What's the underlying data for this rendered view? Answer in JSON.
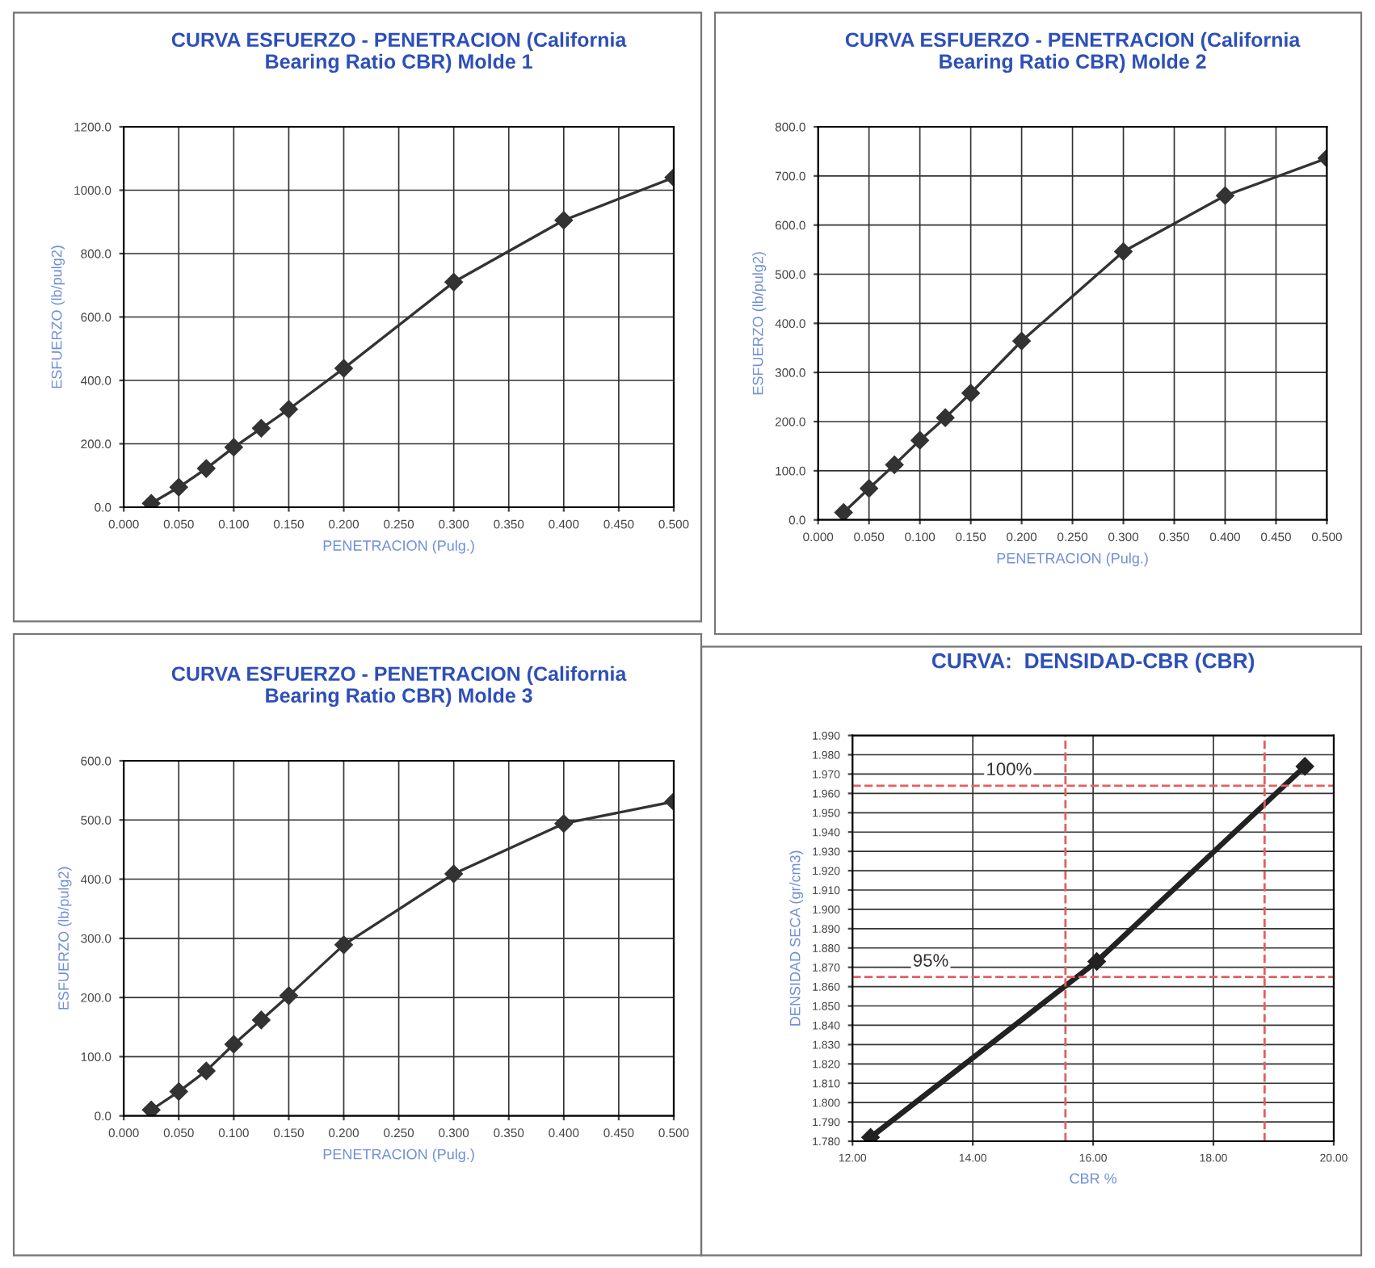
{
  "chart_data": [
    {
      "type": "line",
      "title": "CURVA ESFUERZO - PENETRACION (California Bearing Ratio CBR) Molde 1",
      "xlabel": "PENETRACION (Pulg.)",
      "ylabel": "ESFUERZO (lb/pulg2)",
      "x": [
        0.025,
        0.05,
        0.075,
        0.1,
        0.125,
        0.15,
        0.2,
        0.3,
        0.4,
        0.5
      ],
      "series": [
        {
          "color": "#333333",
          "values": [
            12,
            63,
            122,
            189,
            249,
            309,
            438,
            710,
            905,
            1040
          ]
        }
      ],
      "xlim": [
        0,
        0.5
      ],
      "xticks": [
        {
          "value": 0,
          "label": "0.000"
        },
        {
          "value": 0.05,
          "label": "0.050"
        },
        {
          "value": 0.1,
          "label": "0.100"
        },
        {
          "value": 0.15,
          "label": "0.150"
        },
        {
          "value": 0.2,
          "label": "0.200"
        },
        {
          "value": 0.25,
          "label": "0.250"
        },
        {
          "value": 0.3,
          "label": "0.300"
        },
        {
          "value": 0.35,
          "label": "0.350"
        },
        {
          "value": 0.4,
          "label": "0.400"
        },
        {
          "value": 0.45,
          "label": "0.450"
        },
        {
          "value": 0.5,
          "label": "0.500"
        }
      ],
      "ylim": [
        0,
        1200
      ],
      "yticks": [
        {
          "value": 0,
          "label": "0.0"
        },
        {
          "value": 200,
          "label": "200.0"
        },
        {
          "value": 400,
          "label": "400.0"
        },
        {
          "value": 600,
          "label": "600.0"
        },
        {
          "value": 800,
          "label": "800.0"
        },
        {
          "value": 1000,
          "label": "1000.0"
        },
        {
          "value": 1200,
          "label": "1200.0"
        }
      ],
      "grid": true,
      "marker": "diamond",
      "line_style": "solid"
    },
    {
      "type": "line",
      "title": "CURVA ESFUERZO - PENETRACION (California Bearing Ratio CBR) Molde 2",
      "xlabel": "PENETRACION (Pulg.)",
      "ylabel": "ESFUERZO (lb/pulg2)",
      "x": [
        0.025,
        0.05,
        0.075,
        0.1,
        0.125,
        0.15,
        0.2,
        0.3,
        0.4,
        0.5
      ],
      "series": [
        {
          "color": "#333333",
          "values": [
            15,
            64,
            112,
            162,
            208,
            258,
            364,
            546,
            660,
            736
          ]
        }
      ],
      "xlim": [
        0,
        0.5
      ],
      "xticks": [
        {
          "value": 0,
          "label": "0.000"
        },
        {
          "value": 0.05,
          "label": "0.050"
        },
        {
          "value": 0.1,
          "label": "0.100"
        },
        {
          "value": 0.15,
          "label": "0.150"
        },
        {
          "value": 0.2,
          "label": "0.200"
        },
        {
          "value": 0.25,
          "label": "0.250"
        },
        {
          "value": 0.3,
          "label": "0.300"
        },
        {
          "value": 0.35,
          "label": "0.350"
        },
        {
          "value": 0.4,
          "label": "0.400"
        },
        {
          "value": 0.45,
          "label": "0.450"
        },
        {
          "value": 0.5,
          "label": "0.500"
        }
      ],
      "ylim": [
        0,
        800
      ],
      "yticks": [
        {
          "value": 0,
          "label": "0.0"
        },
        {
          "value": 100,
          "label": "100.0"
        },
        {
          "value": 200,
          "label": "200.0"
        },
        {
          "value": 300,
          "label": "300.0"
        },
        {
          "value": 400,
          "label": "400.0"
        },
        {
          "value": 500,
          "label": "500.0"
        },
        {
          "value": 600,
          "label": "600.0"
        },
        {
          "value": 700,
          "label": "700.0"
        },
        {
          "value": 800,
          "label": "800.0"
        }
      ],
      "grid": true,
      "marker": "diamond",
      "line_style": "solid"
    },
    {
      "type": "line",
      "title": "CURVA ESFUERZO - PENETRACION (California Bearing Ratio CBR) Molde 3",
      "xlabel": "PENETRACION (Pulg.)",
      "ylabel": "ESFUERZO (lb/pulg2)",
      "x": [
        0.025,
        0.05,
        0.075,
        0.1,
        0.125,
        0.15,
        0.2,
        0.3,
        0.4,
        0.5
      ],
      "series": [
        {
          "color": "#333333",
          "values": [
            10,
            41,
            76,
            121,
            162,
            203,
            289,
            409,
            494,
            531
          ]
        }
      ],
      "xlim": [
        0,
        0.5
      ],
      "xticks": [
        {
          "value": 0,
          "label": "0.000"
        },
        {
          "value": 0.05,
          "label": "0.050"
        },
        {
          "value": 0.1,
          "label": "0.100"
        },
        {
          "value": 0.15,
          "label": "0.150"
        },
        {
          "value": 0.2,
          "label": "0.200"
        },
        {
          "value": 0.25,
          "label": "0.250"
        },
        {
          "value": 0.3,
          "label": "0.300"
        },
        {
          "value": 0.35,
          "label": "0.350"
        },
        {
          "value": 0.4,
          "label": "0.400"
        },
        {
          "value": 0.45,
          "label": "0.450"
        },
        {
          "value": 0.5,
          "label": "0.500"
        }
      ],
      "ylim": [
        0,
        600
      ],
      "yticks": [
        {
          "value": 0,
          "label": "0.0"
        },
        {
          "value": 100,
          "label": "100.0"
        },
        {
          "value": 200,
          "label": "200.0"
        },
        {
          "value": 300,
          "label": "300.0"
        },
        {
          "value": 400,
          "label": "400.0"
        },
        {
          "value": 500,
          "label": "500.0"
        },
        {
          "value": 600,
          "label": "600.0"
        }
      ],
      "grid": true,
      "marker": "diamond",
      "line_style": "solid"
    },
    {
      "type": "line",
      "title": "CURVA:  DENSIDAD-CBR (CBR)",
      "xlabel": "CBR %",
      "ylabel": "DENSIDAD SECA (gr/cm3)",
      "x": [
        12.3,
        16.06,
        19.52
      ],
      "series": [
        {
          "color": "#222222",
          "values": [
            1.782,
            1.873,
            1.974
          ]
        }
      ],
      "xlim": [
        12,
        20
      ],
      "xticks": [
        {
          "value": 12,
          "label": "12.00"
        },
        {
          "value": 14,
          "label": "14.00"
        },
        {
          "value": 16,
          "label": "16.00"
        },
        {
          "value": 18,
          "label": "18.00"
        },
        {
          "value": 20,
          "label": "20.00"
        }
      ],
      "ylim": [
        1.78,
        1.99
      ],
      "yticks": [
        {
          "value": 1.78,
          "label": "1.780"
        },
        {
          "value": 1.79,
          "label": "1.790"
        },
        {
          "value": 1.8,
          "label": "1.800"
        },
        {
          "value": 1.81,
          "label": "1.810"
        },
        {
          "value": 1.82,
          "label": "1.820"
        },
        {
          "value": 1.83,
          "label": "1.830"
        },
        {
          "value": 1.84,
          "label": "1.840"
        },
        {
          "value": 1.85,
          "label": "1.850"
        },
        {
          "value": 1.86,
          "label": "1.860"
        },
        {
          "value": 1.87,
          "label": "1.870"
        },
        {
          "value": 1.88,
          "label": "1.880"
        },
        {
          "value": 1.89,
          "label": "1.890"
        },
        {
          "value": 1.9,
          "label": "1.900"
        },
        {
          "value": 1.91,
          "label": "1.910"
        },
        {
          "value": 1.92,
          "label": "1.920"
        },
        {
          "value": 1.93,
          "label": "1.930"
        },
        {
          "value": 1.94,
          "label": "1.940"
        },
        {
          "value": 1.95,
          "label": "1.950"
        },
        {
          "value": 1.96,
          "label": "1.960"
        },
        {
          "value": 1.97,
          "label": "1.970"
        },
        {
          "value": 1.98,
          "label": "1.980"
        },
        {
          "value": 1.99,
          "label": "1.990"
        }
      ],
      "annotations": [
        {
          "text": "100%",
          "x": 14.6,
          "y": 1.964
        },
        {
          "text": "95%",
          "x": 13.3,
          "y": 1.865
        }
      ],
      "ref_lines": [
        {
          "axis": "y",
          "value": 1.964,
          "color": "#e06060",
          "line_style": "dashed"
        },
        {
          "axis": "y",
          "value": 1.865,
          "color": "#e06060",
          "line_style": "dashed"
        },
        {
          "axis": "x",
          "value": 15.54,
          "color": "#e06060",
          "line_style": "dashed"
        },
        {
          "axis": "x",
          "value": 18.85,
          "color": "#e06060",
          "line_style": "dashed"
        }
      ],
      "grid": true,
      "marker": "diamond",
      "line_style": "solid"
    }
  ]
}
